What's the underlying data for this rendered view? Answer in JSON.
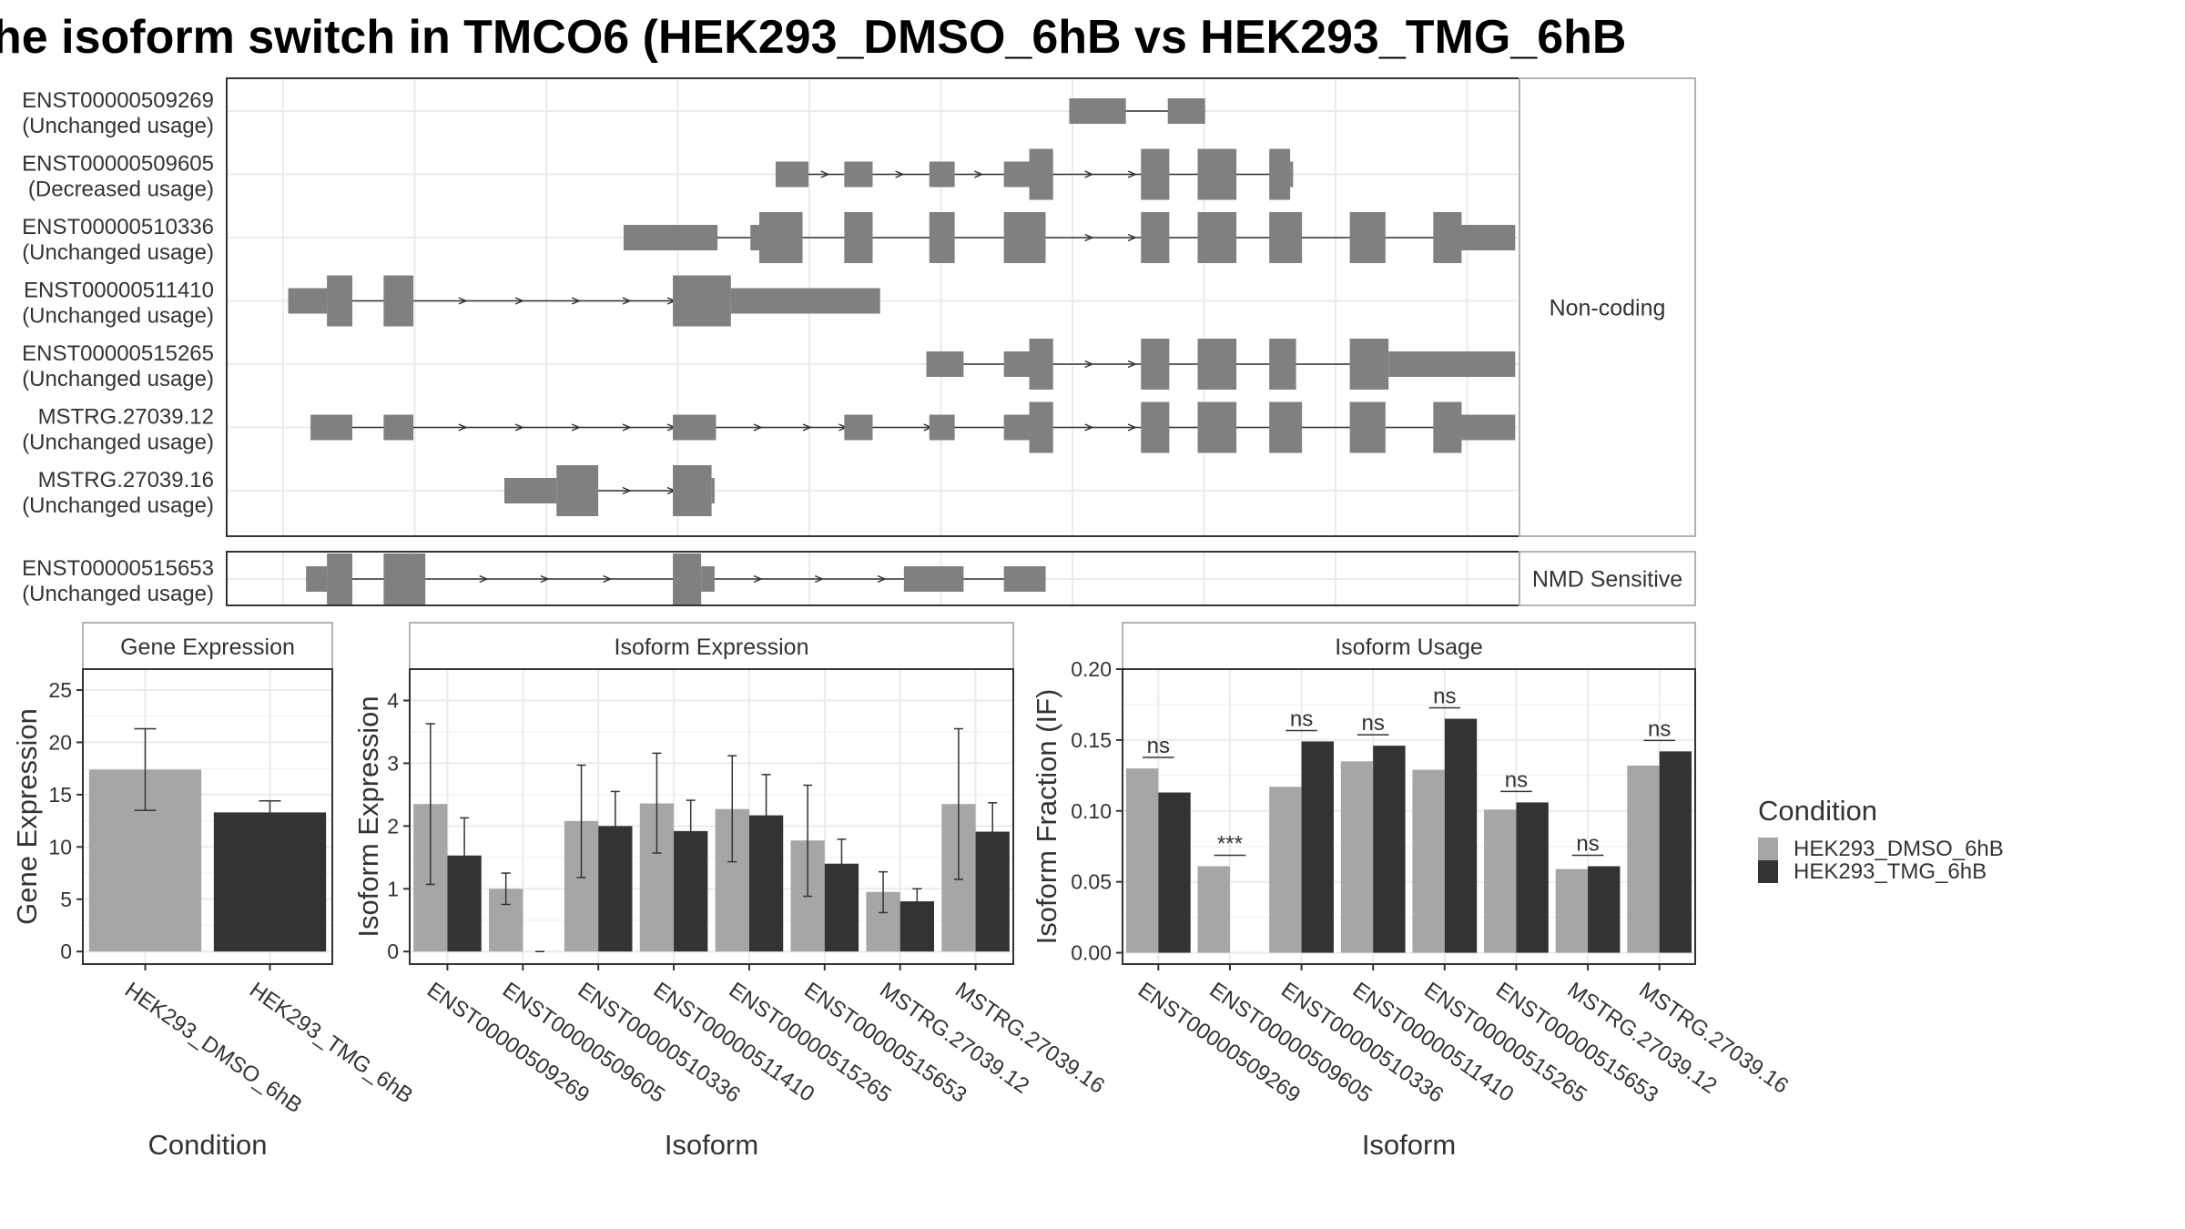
{
  "title": "he isoform switch in TMCO6 (HEK293_DMSO_6hB vs HEK293_TMG_6hB",
  "colors": {
    "dmso": "#a6a6a6",
    "tmg": "#333333",
    "exon": "#808080",
    "panel_border": "#333333",
    "strip_border": "#b3b3b3",
    "strip_fill": "#ffffff",
    "grid": "#ebebeb"
  },
  "transcripts": {
    "noncoding_label": "Non-coding",
    "nmd_label": "NMD Sensitive",
    "noncoding": [
      {
        "id": "ENST00000509269",
        "usage": "(Unchanged usage)",
        "exons": [
          [
            0.6526,
            0.6966,
            "n"
          ],
          [
            0.7291,
            0.7581,
            "n"
          ]
        ],
        "arrows": []
      },
      {
        "id": "ENST00000509605",
        "usage": "(Decreased usage)",
        "exons": [
          [
            0.4247,
            0.4502,
            "n"
          ],
          [
            0.478,
            0.5,
            "n"
          ],
          [
            0.544,
            0.5637,
            "n"
          ],
          [
            0.6019,
            0.6216,
            "n"
          ],
          [
            0.6216,
            0.6401,
            "w"
          ],
          [
            0.7083,
            0.7303,
            "w"
          ],
          [
            0.7523,
            0.7824,
            "w"
          ],
          [
            0.8079,
            0.8241,
            "w"
          ],
          [
            0.8241,
            0.8264,
            "n"
          ]
        ],
        "arrows": [
          0.4641,
          0.522,
          0.5833,
          0.669,
          0.7025
        ]
      },
      {
        "id": "ENST00000510336",
        "usage": "(Unchanged usage)",
        "exons": [
          [
            0.3067,
            0.3796,
            "n"
          ],
          [
            0.4051,
            0.412,
            "n"
          ],
          [
            0.412,
            0.4456,
            "w"
          ],
          [
            0.478,
            0.5,
            "w"
          ],
          [
            0.544,
            0.5637,
            "w"
          ],
          [
            0.6019,
            0.6343,
            "w"
          ],
          [
            0.7083,
            0.7303,
            "w"
          ],
          [
            0.7523,
            0.7824,
            "w"
          ],
          [
            0.8079,
            0.8333,
            "w"
          ],
          [
            0.8704,
            0.8981,
            "w"
          ],
          [
            0.9352,
            0.9572,
            "w"
          ],
          [
            0.9572,
            0.9988,
            "n"
          ]
        ],
        "arrows": [
          0.669,
          0.7025
        ]
      },
      {
        "id": "ENST00000511410",
        "usage": "(Unchanged usage)",
        "exons": [
          [
            0.0463,
            0.0764,
            "n"
          ],
          [
            0.0764,
            0.0961,
            "w"
          ],
          [
            0.1204,
            0.1435,
            "w"
          ],
          [
            0.3449,
            0.39,
            "w"
          ],
          [
            0.39,
            0.5058,
            "n"
          ]
        ],
        "arrows": [
          0.1829,
          0.2269,
          0.2708,
          0.3102,
          0.3449
        ]
      },
      {
        "id": "ENST00000515265",
        "usage": "(Unchanged usage)",
        "exons": [
          [
            0.5417,
            0.5706,
            "n"
          ],
          [
            0.6019,
            0.6216,
            "n"
          ],
          [
            0.6216,
            0.6401,
            "w"
          ],
          [
            0.7083,
            0.7303,
            "w"
          ],
          [
            0.7523,
            0.7824,
            "w"
          ],
          [
            0.8079,
            0.8287,
            "w"
          ],
          [
            0.8704,
            0.9005,
            "w"
          ],
          [
            0.9005,
            0.9988,
            "n"
          ]
        ],
        "arrows": [
          0.669,
          0.7025
        ]
      },
      {
        "id": "MSTRG.27039.12",
        "usage": "(Unchanged usage)",
        "exons": [
          [
            0.0637,
            0.0961,
            "n"
          ],
          [
            0.1204,
            0.1435,
            "n"
          ],
          [
            0.3449,
            0.3784,
            "n"
          ],
          [
            0.478,
            0.5,
            "n"
          ],
          [
            0.544,
            0.5637,
            "n"
          ],
          [
            0.6019,
            0.6216,
            "n"
          ],
          [
            0.6216,
            0.6401,
            "w"
          ],
          [
            0.7083,
            0.7303,
            "w"
          ],
          [
            0.7523,
            0.7824,
            "w"
          ],
          [
            0.8079,
            0.8333,
            "w"
          ],
          [
            0.8704,
            0.8981,
            "w"
          ],
          [
            0.9352,
            0.9572,
            "w"
          ],
          [
            0.9572,
            0.9988,
            "n"
          ]
        ],
        "arrows": [
          0.1829,
          0.2269,
          0.2708,
          0.3102,
          0.3449,
          0.412,
          0.4502,
          0.478,
          0.544,
          0.669,
          0.7025
        ]
      },
      {
        "id": "MSTRG.27039.16",
        "usage": "(Unchanged usage)",
        "exons": [
          [
            0.2141,
            0.2546,
            "n"
          ],
          [
            0.2546,
            0.287,
            "w"
          ],
          [
            0.3449,
            0.375,
            "w"
          ],
          [
            0.375,
            0.3773,
            "n"
          ]
        ],
        "arrows": [
          0.3102,
          0.3449
        ]
      }
    ],
    "nmd": [
      {
        "id": "ENST00000515653",
        "usage": "(Unchanged usage)",
        "exons": [
          [
            0.0602,
            0.0764,
            "n"
          ],
          [
            0.0764,
            0.0961,
            "w"
          ],
          [
            0.1204,
            0.1528,
            "w"
          ],
          [
            0.3449,
            0.3669,
            "w"
          ],
          [
            0.3669,
            0.3773,
            "n"
          ],
          [
            0.5243,
            0.5706,
            "n"
          ],
          [
            0.6019,
            0.6343,
            "n"
          ]
        ],
        "arrows": [
          0.1991,
          0.2465,
          0.2951,
          0.412,
          0.4595,
          0.5081
        ]
      }
    ]
  },
  "chart_data": [
    {
      "type": "bar",
      "panel_title": "Gene Expression",
      "xlabel": "Condition",
      "ylabel": "Gene Expression",
      "ylim": [
        -1.2,
        27.0
      ],
      "yticks": [
        0,
        5,
        10,
        15,
        20,
        25
      ],
      "categories": [
        "HEK293_DMSO_6hB",
        "HEK293_TMG_6hB"
      ],
      "values": [
        17.4,
        13.3
      ],
      "error_low": [
        13.5,
        12.3
      ],
      "error_high": [
        21.3,
        14.4
      ]
    },
    {
      "type": "bar",
      "panel_title": "Isoform Expression",
      "xlabel": "Isoform",
      "ylabel": "Isoform Expression",
      "ylim": [
        -0.2,
        4.5
      ],
      "yticks": [
        0,
        1,
        2,
        3,
        4
      ],
      "categories": [
        "ENST00000509269",
        "ENST00000509605",
        "ENST00000510336",
        "ENST00000511410",
        "ENST00000515265",
        "ENST00000515653",
        "MSTRG.27039.12",
        "MSTRG.27039.16"
      ],
      "series": [
        {
          "name": "HEK293_DMSO_6hB",
          "values": [
            2.35,
            1.0,
            2.08,
            2.36,
            2.27,
            1.77,
            0.95,
            2.35
          ],
          "error_low": [
            1.07,
            0.75,
            1.18,
            1.57,
            1.43,
            0.88,
            0.62,
            1.15
          ],
          "error_high": [
            3.63,
            1.25,
            2.97,
            3.16,
            3.12,
            2.65,
            1.27,
            3.55
          ]
        },
        {
          "name": "HEK293_TMG_6hB",
          "values": [
            1.53,
            0.0,
            2.0,
            1.92,
            2.17,
            1.4,
            0.8,
            1.91
          ],
          "error_low": [
            0.93,
            0.0,
            1.45,
            1.43,
            1.53,
            1.0,
            0.6,
            1.45
          ],
          "error_high": [
            2.13,
            0.0,
            2.55,
            2.41,
            2.82,
            1.79,
            1.0,
            2.37
          ]
        }
      ]
    },
    {
      "type": "bar",
      "panel_title": "Isoform Usage",
      "xlabel": "Isoform",
      "ylabel": "Isoform Fraction (IF)",
      "ylim": [
        -0.008,
        0.2
      ],
      "yticks": [
        "0.00",
        "0.05",
        "0.10",
        "0.15",
        "0.20"
      ],
      "categories": [
        "ENST00000509269",
        "ENST00000509605",
        "ENST00000510336",
        "ENST00000511410",
        "ENST00000515265",
        "ENST00000515653",
        "MSTRG.27039.12",
        "MSTRG.27039.16"
      ],
      "series": [
        {
          "name": "HEK293_DMSO_6hB",
          "values": [
            0.13,
            0.061,
            0.117,
            0.135,
            0.129,
            0.101,
            0.059,
            0.132
          ]
        },
        {
          "name": "HEK293_TMG_6hB",
          "values": [
            0.113,
            0.0,
            0.149,
            0.146,
            0.165,
            0.106,
            0.061,
            0.142
          ]
        }
      ],
      "significance": [
        "ns",
        "***",
        "ns",
        "ns",
        "ns",
        "ns",
        "ns",
        "ns"
      ]
    }
  ],
  "legend": {
    "title": "Condition",
    "items": [
      {
        "label": "HEK293_DMSO_6hB",
        "color": "#a6a6a6"
      },
      {
        "label": "HEK293_TMG_6hB",
        "color": "#333333"
      }
    ]
  }
}
